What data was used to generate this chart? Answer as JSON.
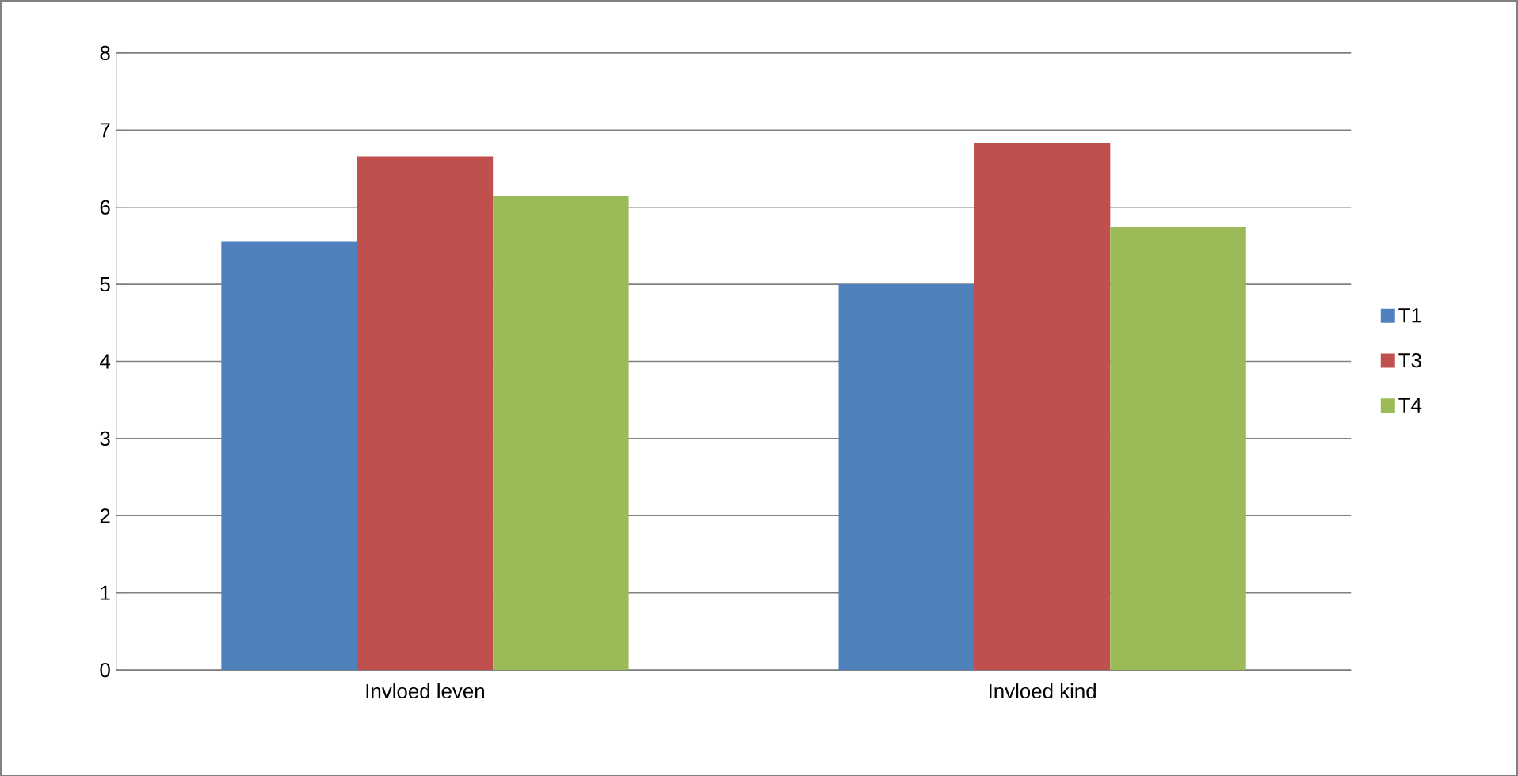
{
  "chart_data": {
    "type": "bar",
    "categories": [
      "Invloed leven",
      "Invloed kind"
    ],
    "series": [
      {
        "name": "T1",
        "color": "#4f81bd",
        "values": [
          5.56,
          5.0
        ]
      },
      {
        "name": "T3",
        "color": "#c0504d",
        "values": [
          6.66,
          6.84
        ]
      },
      {
        "name": "T4",
        "color": "#9bbb59",
        "values": [
          6.15,
          5.74
        ]
      }
    ],
    "ylim": [
      0,
      8
    ],
    "yticks": [
      0,
      1,
      2,
      3,
      4,
      5,
      6,
      7,
      8
    ],
    "grid": "y",
    "legend": "right"
  }
}
